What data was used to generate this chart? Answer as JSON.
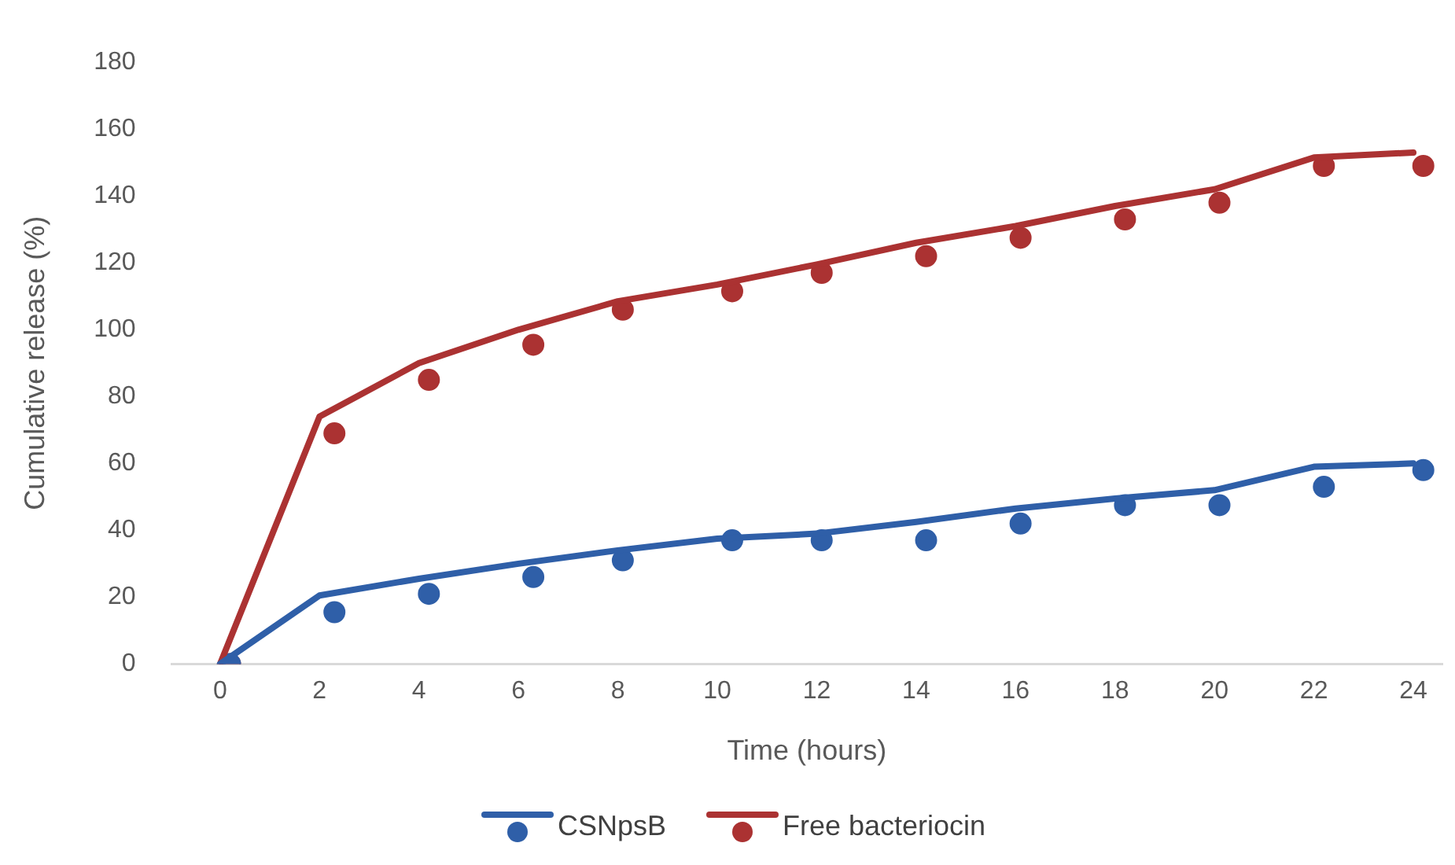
{
  "chart_data": {
    "type": "line",
    "xlabel": "Time (hours)",
    "ylabel": "Cumulative release (%)",
    "x": [
      0,
      2,
      4,
      6,
      8,
      10,
      12,
      14,
      16,
      18,
      20,
      22,
      24
    ],
    "xlim": [
      -1,
      24.6
    ],
    "xticks": [
      0,
      2,
      4,
      6,
      8,
      10,
      12,
      14,
      16,
      18,
      20,
      22,
      24
    ],
    "ylim": [
      0,
      180
    ],
    "yticks": [
      0,
      20,
      40,
      60,
      80,
      100,
      120,
      140,
      160,
      180
    ],
    "grid": false,
    "legend": "bottom",
    "marker": "none",
    "line_style": "solid",
    "series": [
      {
        "name": "CSNpsB",
        "color": "#2f5fa8",
        "type": "line",
        "values": [
          0,
          20.5,
          25.5,
          30,
          34,
          37.5,
          39,
          42.5,
          46.5,
          49.5,
          52,
          59,
          60
        ]
      },
      {
        "name": "Free bacteriocin",
        "color": "#ab3232",
        "type": "line",
        "values": [
          0,
          74,
          90,
          100,
          108.5,
          113.5,
          119.5,
          126,
          131,
          137,
          142,
          151.5,
          153
        ]
      },
      {
        "color": "#2f5fa8",
        "type": "scatter",
        "marker": "circle",
        "x": [
          0.2,
          2.3,
          4.2,
          6.3,
          8.1,
          10.3,
          12.1,
          14.2,
          16.1,
          18.2,
          20.1,
          22.2,
          24.2
        ],
        "values": [
          0,
          15.5,
          21,
          26,
          31,
          37,
          37,
          37,
          42,
          47.5,
          47.5,
          53,
          58
        ]
      },
      {
        "color": "#ab3232",
        "type": "scatter",
        "marker": "circle",
        "x": [
          0.2,
          2.3,
          4.2,
          6.3,
          8.1,
          10.3,
          12.1,
          14.2,
          16.1,
          18.2,
          20.1,
          22.2,
          24.2
        ],
        "values": [
          0,
          69,
          85,
          95.5,
          106,
          111.5,
          117,
          122,
          127.5,
          133,
          138,
          149,
          149
        ]
      }
    ]
  }
}
